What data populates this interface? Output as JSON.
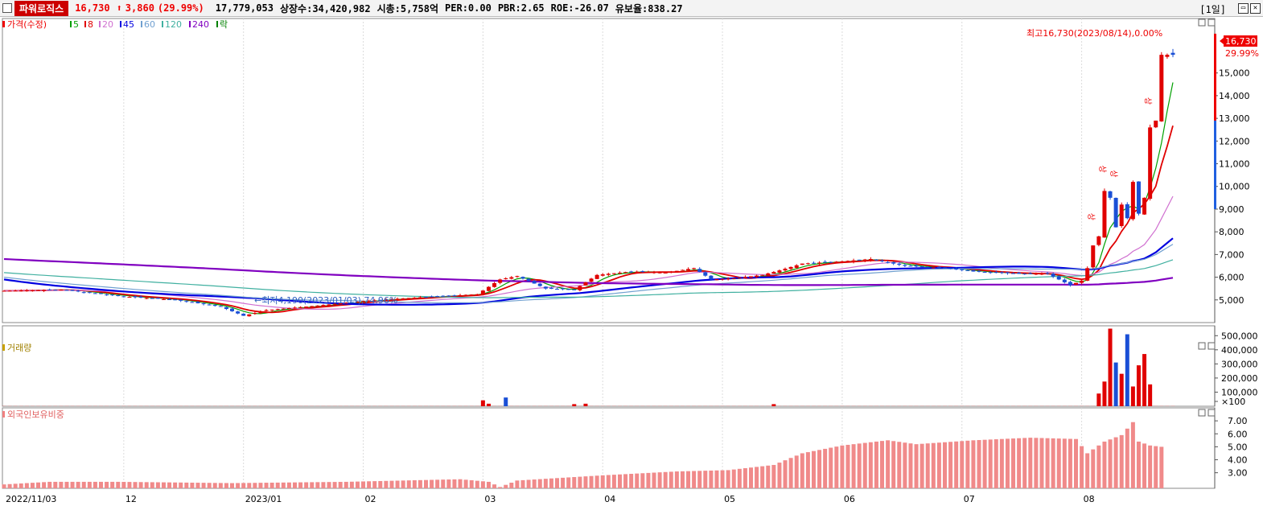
{
  "header": {
    "name": "파워로직스",
    "price": "16,730",
    "change_arrow": "⬆",
    "change": "3,860",
    "change_pct": "(29.99%)",
    "volume": "17,779,053",
    "listed": "상장수:34,420,982",
    "mcap": "시총:5,758억",
    "per": "PER:0.00",
    "pbr": "PBR:2.65",
    "roe": "ROE:-26.07",
    "float": "유보율:838.27",
    "period": "[1일]"
  },
  "legend": {
    "price": "가격(수정)",
    "items": [
      {
        "label": "5",
        "color": "#00a000"
      },
      {
        "label": "8",
        "color": "#e00000"
      },
      {
        "label": "20",
        "color": "#d070d0"
      },
      {
        "label": "45",
        "color": "#0000e0"
      },
      {
        "label": "60",
        "color": "#70a0d0"
      },
      {
        "label": "120",
        "color": "#40b0a0"
      },
      {
        "label": "240",
        "color": "#8000c0"
      },
      {
        "label": "락",
        "color": "#008000"
      }
    ]
  },
  "volume_title": "거래량",
  "foreign_title": "외국인보유비중",
  "annotations": {
    "high": "최고16,730(2023/08/14),0.00%",
    "low": "←최저4,190(2023/01/03),74.96%",
    "limit_up": "상"
  },
  "price_badge": {
    "value": "16,730",
    "pct": "29.99%"
  },
  "chart_data": {
    "type": "candlestick",
    "price_axis": {
      "ticks": [
        "15,000",
        "14,000",
        "13,000",
        "12,000",
        "11,000",
        "10,000",
        "9,000",
        "8,000",
        "7,000",
        "6,000",
        "5,000"
      ],
      "values": [
        15000,
        14000,
        13000,
        12000,
        11000,
        10000,
        9000,
        8000,
        7000,
        6000,
        5000
      ],
      "range": [
        4000,
        17400
      ]
    },
    "volume_axis": {
      "ticks": [
        "500,000",
        "400,000",
        "300,000",
        "200,000",
        "100,000",
        "×100"
      ],
      "values": [
        5000,
        4000,
        3000,
        2000,
        1000,
        0
      ],
      "range": [
        0,
        5700
      ]
    },
    "foreign_axis": {
      "ticks": [
        "7.00",
        "6.00",
        "5.00",
        "4.00",
        "3.00"
      ],
      "values": [
        7,
        6,
        5,
        4,
        3
      ],
      "range": [
        1.8,
        8.0
      ]
    },
    "x_labels": [
      "2022/11/03",
      "12",
      "2023/01",
      "02",
      "03",
      "04",
      "05",
      "06",
      "07",
      "08"
    ],
    "x_label_index": [
      0,
      21,
      42,
      63,
      84,
      105,
      126,
      147,
      168,
      189
    ],
    "days": 206,
    "price_keys": [
      [
        0,
        5400
      ],
      [
        10,
        5450
      ],
      [
        21,
        5150
      ],
      [
        30,
        5000
      ],
      [
        38,
        4700
      ],
      [
        42,
        4300
      ],
      [
        46,
        4550
      ],
      [
        55,
        4750
      ],
      [
        63,
        4950
      ],
      [
        72,
        5100
      ],
      [
        83,
        5250
      ],
      [
        87,
        5900
      ],
      [
        90,
        6050
      ],
      [
        95,
        5500
      ],
      [
        100,
        5450
      ],
      [
        104,
        6100
      ],
      [
        110,
        6250
      ],
      [
        116,
        6200
      ],
      [
        121,
        6400
      ],
      [
        124,
        5900
      ],
      [
        128,
        5950
      ],
      [
        133,
        6100
      ],
      [
        136,
        6300
      ],
      [
        140,
        6600
      ],
      [
        147,
        6700
      ],
      [
        152,
        6800
      ],
      [
        158,
        6500
      ],
      [
        165,
        6400
      ],
      [
        170,
        6250
      ],
      [
        178,
        6150
      ],
      [
        183,
        6150
      ],
      [
        187,
        5650
      ],
      [
        189,
        5850
      ],
      [
        190,
        6400
      ],
      [
        191,
        7400
      ],
      [
        192,
        7800
      ],
      [
        193,
        9800
      ],
      [
        194,
        9500
      ],
      [
        195,
        8200
      ],
      [
        196,
        9200
      ],
      [
        197,
        8600
      ],
      [
        198,
        10200
      ],
      [
        199,
        8800
      ],
      [
        200,
        9500
      ],
      [
        201,
        12600
      ],
      [
        202,
        12900
      ],
      [
        203,
        15800
      ]
    ],
    "volume_bars": [
      {
        "i": 84,
        "v": 420,
        "c": "up"
      },
      {
        "i": 85,
        "v": 180,
        "c": "up"
      },
      {
        "i": 88,
        "v": 620,
        "c": "down"
      },
      {
        "i": 100,
        "v": 150,
        "c": "up"
      },
      {
        "i": 102,
        "v": 180,
        "c": "up"
      },
      {
        "i": 135,
        "v": 150,
        "c": "up"
      },
      {
        "i": 192,
        "v": 900,
        "c": "up"
      },
      {
        "i": 193,
        "v": 1750,
        "c": "up"
      },
      {
        "i": 194,
        "v": 5500,
        "c": "up"
      },
      {
        "i": 195,
        "v": 3100,
        "c": "down"
      },
      {
        "i": 196,
        "v": 2300,
        "c": "up"
      },
      {
        "i": 197,
        "v": 5100,
        "c": "down"
      },
      {
        "i": 198,
        "v": 1400,
        "c": "up"
      },
      {
        "i": 199,
        "v": 2900,
        "c": "up"
      },
      {
        "i": 200,
        "v": 3700,
        "c": "up"
      },
      {
        "i": 201,
        "v": 1550,
        "c": "up"
      }
    ],
    "foreign_keys": [
      [
        0,
        2.1
      ],
      [
        8,
        2.3
      ],
      [
        20,
        2.3
      ],
      [
        40,
        2.2
      ],
      [
        60,
        2.3
      ],
      [
        80,
        2.5
      ],
      [
        85,
        2.3
      ],
      [
        87,
        1.9
      ],
      [
        90,
        2.4
      ],
      [
        105,
        2.8
      ],
      [
        118,
        3.1
      ],
      [
        127,
        3.2
      ],
      [
        135,
        3.6
      ],
      [
        140,
        4.5
      ],
      [
        147,
        5.1
      ],
      [
        155,
        5.5
      ],
      [
        160,
        5.2
      ],
      [
        170,
        5.5
      ],
      [
        180,
        5.7
      ],
      [
        188,
        5.6
      ],
      [
        190,
        4.5
      ],
      [
        193,
        5.4
      ],
      [
        196,
        5.9
      ],
      [
        198,
        6.9
      ],
      [
        199,
        5.4
      ],
      [
        201,
        5.1
      ],
      [
        203,
        5.0
      ]
    ]
  }
}
